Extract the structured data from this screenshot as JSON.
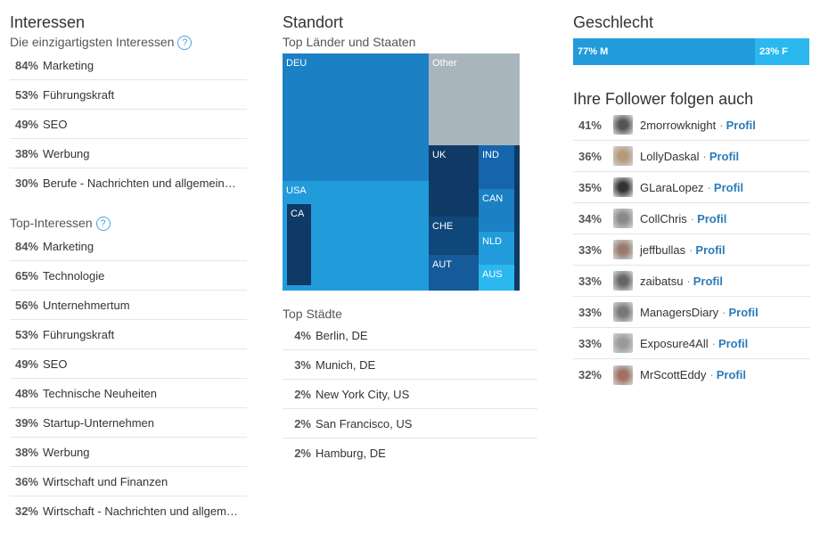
{
  "interessen": {
    "title": "Interessen",
    "unique_title": "Die einzigartigsten Interessen",
    "unique": [
      {
        "pct": "84%",
        "label": "Marketing"
      },
      {
        "pct": "53%",
        "label": "Führungskraft"
      },
      {
        "pct": "49%",
        "label": "SEO"
      },
      {
        "pct": "38%",
        "label": "Werbung"
      },
      {
        "pct": "30%",
        "label": "Berufe - Nachrichten und allgemein…"
      }
    ],
    "top_title": "Top-Interessen",
    "top": [
      {
        "pct": "84%",
        "label": "Marketing"
      },
      {
        "pct": "65%",
        "label": "Technologie"
      },
      {
        "pct": "56%",
        "label": "Unternehmertum"
      },
      {
        "pct": "53%",
        "label": "Führungskraft"
      },
      {
        "pct": "49%",
        "label": "SEO"
      },
      {
        "pct": "48%",
        "label": "Technische Neuheiten"
      },
      {
        "pct": "39%",
        "label": "Startup-Unternehmen"
      },
      {
        "pct": "38%",
        "label": "Werbung"
      },
      {
        "pct": "36%",
        "label": "Wirtschaft und Finanzen"
      },
      {
        "pct": "32%",
        "label": "Wirtschaft - Nachrichten und allgem…"
      }
    ]
  },
  "standort": {
    "title": "Standort",
    "countries_title": "Top Länder und Staaten",
    "treemap": [
      "DEU",
      "Other",
      "USA",
      "CA",
      "UK",
      "CHE",
      "AUT",
      "IND",
      "CAN",
      "NLD",
      "AUS"
    ],
    "cities_title": "Top Städte",
    "cities": [
      {
        "pct": "4%",
        "label": "Berlin, DE"
      },
      {
        "pct": "3%",
        "label": "Munich, DE"
      },
      {
        "pct": "2%",
        "label": "New York City, US"
      },
      {
        "pct": "2%",
        "label": "San Francisco, US"
      },
      {
        "pct": "2%",
        "label": "Hamburg, DE"
      }
    ]
  },
  "geschlecht": {
    "title": "Geschlecht",
    "male": "77% M",
    "female": "23% F",
    "male_pct": 77,
    "female_pct": 23,
    "male_color": "#229bdb",
    "female_color": "#2ab8ef"
  },
  "follower": {
    "title": "Ihre Follower folgen auch",
    "profile_label": "Profil",
    "items": [
      {
        "pct": "41%",
        "name": "2morrowknight"
      },
      {
        "pct": "36%",
        "name": "LollyDaskal"
      },
      {
        "pct": "35%",
        "name": "GLaraLopez"
      },
      {
        "pct": "34%",
        "name": "CollChris"
      },
      {
        "pct": "33%",
        "name": "jeffbullas"
      },
      {
        "pct": "33%",
        "name": "zaibatsu"
      },
      {
        "pct": "33%",
        "name": "ManagersDiary"
      },
      {
        "pct": "33%",
        "name": "Exposure4All"
      },
      {
        "pct": "32%",
        "name": "MrScottEddy"
      }
    ]
  }
}
